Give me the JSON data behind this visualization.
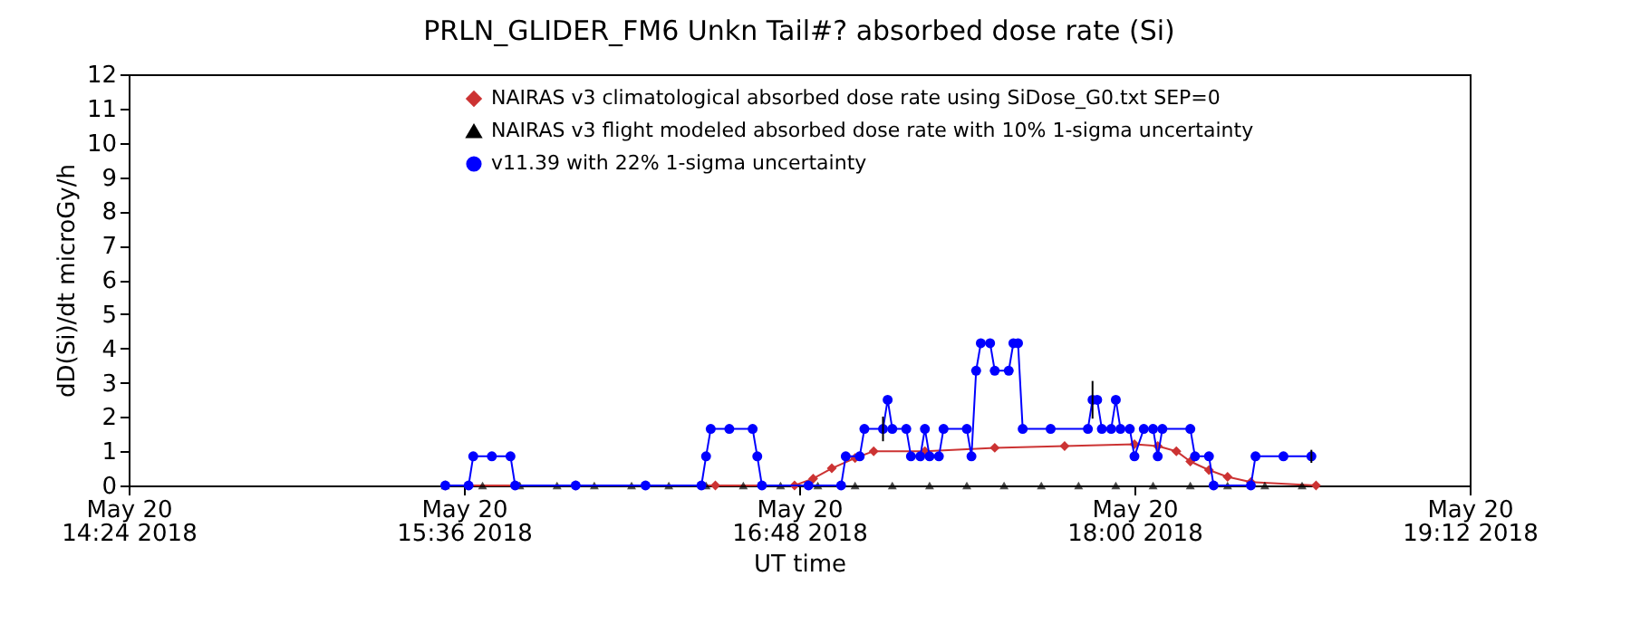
{
  "chart_data": {
    "type": "line",
    "title": "PRLN_GLIDER_FM6 Unkn Tail#? absorbed dose rate (Si)",
    "xlabel": "UT time",
    "ylabel": "dD(Si)/dt microGy/h",
    "xlim": [
      "2018-05-20T14:24",
      "2018-05-20T19:12"
    ],
    "xticks": [
      {
        "value": "2018-05-20T14:24",
        "label": "May 20\n14:24 2018"
      },
      {
        "value": "2018-05-20T15:36",
        "label": "May 20\n15:36 2018"
      },
      {
        "value": "2018-05-20T16:48",
        "label": "May 20\n16:48 2018"
      },
      {
        "value": "2018-05-20T18:00",
        "label": "May 20\n18:00 2018"
      },
      {
        "value": "2018-05-20T19:12",
        "label": "May 20\n19:12 2018"
      }
    ],
    "ylim": [
      0,
      12
    ],
    "yticks": [
      0,
      1,
      2,
      3,
      4,
      5,
      6,
      7,
      8,
      9,
      10,
      11,
      12
    ],
    "grid": false,
    "legend": "top",
    "series": [
      {
        "name": "NAIRAS v3 climatological absorbed dose rate using SiDose_G0.txt SEP=0",
        "color": "#cc3333",
        "type": "line",
        "marker": "diamond",
        "x": [
          "2018-05-20T15:32",
          "2018-05-20T16:00",
          "2018-05-20T16:30",
          "2018-05-20T16:47",
          "2018-05-20T16:51",
          "2018-05-20T16:55",
          "2018-05-20T17:00",
          "2018-05-20T17:04",
          "2018-05-20T17:15",
          "2018-05-20T17:30",
          "2018-05-20T17:45",
          "2018-05-20T18:00",
          "2018-05-20T18:05",
          "2018-05-20T18:09",
          "2018-05-20T18:12",
          "2018-05-20T18:16",
          "2018-05-20T18:20",
          "2018-05-20T18:25",
          "2018-05-20T18:39"
        ],
        "values": [
          0,
          0,
          0,
          0,
          0.2,
          0.5,
          0.8,
          1.0,
          1.0,
          1.1,
          1.15,
          1.2,
          1.15,
          1.0,
          0.7,
          0.45,
          0.25,
          0.1,
          0
        ]
      },
      {
        "name": "NAIRAS v3 flight modeled absorbed dose rate with 10% 1-sigma uncertainty",
        "color": "#000000",
        "type": "scatter",
        "marker": "triangle",
        "x": [
          "2018-05-20T15:32",
          "2018-05-20T15:40",
          "2018-05-20T15:48",
          "2018-05-20T15:56",
          "2018-05-20T16:04",
          "2018-05-20T16:12",
          "2018-05-20T16:20",
          "2018-05-20T16:28",
          "2018-05-20T16:36",
          "2018-05-20T16:44",
          "2018-05-20T16:52",
          "2018-05-20T17:00",
          "2018-05-20T17:08",
          "2018-05-20T17:16",
          "2018-05-20T17:24",
          "2018-05-20T17:32",
          "2018-05-20T17:40",
          "2018-05-20T17:48",
          "2018-05-20T17:56",
          "2018-05-20T18:04",
          "2018-05-20T18:12",
          "2018-05-20T18:20",
          "2018-05-20T18:28",
          "2018-05-20T18:36"
        ],
        "values": [
          0,
          0,
          0,
          0,
          0,
          0,
          0,
          0,
          0,
          0,
          0,
          0,
          0,
          0,
          0,
          0,
          0,
          0,
          0,
          0,
          0,
          0,
          0,
          0
        ]
      },
      {
        "name": "v11.39 with 22% 1-sigma uncertainty",
        "color": "#0000ff",
        "type": "line",
        "marker": "circle",
        "x": [
          "2018-05-20T15:32",
          "2018-05-20T15:37",
          "2018-05-20T15:38",
          "2018-05-20T15:42",
          "2018-05-20T15:46",
          "2018-05-20T15:47",
          "2018-05-20T16:00",
          "2018-05-20T16:15",
          "2018-05-20T16:27",
          "2018-05-20T16:28",
          "2018-05-20T16:29",
          "2018-05-20T16:33",
          "2018-05-20T16:38",
          "2018-05-20T16:39",
          "2018-05-20T16:40",
          "2018-05-20T16:50",
          "2018-05-20T16:57",
          "2018-05-20T16:58",
          "2018-05-20T17:01",
          "2018-05-20T17:02",
          "2018-05-20T17:06",
          "2018-05-20T17:07",
          "2018-05-20T17:08",
          "2018-05-20T17:11",
          "2018-05-20T17:12",
          "2018-05-20T17:14",
          "2018-05-20T17:15",
          "2018-05-20T17:16",
          "2018-05-20T17:18",
          "2018-05-20T17:19",
          "2018-05-20T17:24",
          "2018-05-20T17:25",
          "2018-05-20T17:26",
          "2018-05-20T17:27",
          "2018-05-20T17:29",
          "2018-05-20T17:30",
          "2018-05-20T17:33",
          "2018-05-20T17:34",
          "2018-05-20T17:35",
          "2018-05-20T17:36",
          "2018-05-20T17:42",
          "2018-05-20T17:50",
          "2018-05-20T17:51",
          "2018-05-20T17:52",
          "2018-05-20T17:53",
          "2018-05-20T17:55",
          "2018-05-20T17:56",
          "2018-05-20T17:57",
          "2018-05-20T17:59",
          "2018-05-20T18:00",
          "2018-05-20T18:02",
          "2018-05-20T18:04",
          "2018-05-20T18:05",
          "2018-05-20T18:06",
          "2018-05-20T18:12",
          "2018-05-20T18:13",
          "2018-05-20T18:16",
          "2018-05-20T18:17",
          "2018-05-20T18:25",
          "2018-05-20T18:26",
          "2018-05-20T18:32",
          "2018-05-20T18:38"
        ],
        "values": [
          0,
          0,
          0.85,
          0.85,
          0.85,
          0,
          0,
          0,
          0,
          0.85,
          1.65,
          1.65,
          1.65,
          0.85,
          0,
          0,
          0,
          0.85,
          0.85,
          1.65,
          1.65,
          2.5,
          1.65,
          1.65,
          0.85,
          0.85,
          1.65,
          0.85,
          0.85,
          1.65,
          1.65,
          0.85,
          3.35,
          4.15,
          4.15,
          3.35,
          3.35,
          4.15,
          4.15,
          1.65,
          1.65,
          1.65,
          2.5,
          2.5,
          1.65,
          1.65,
          2.5,
          1.65,
          1.65,
          0.85,
          1.65,
          1.65,
          0.85,
          1.65,
          1.65,
          0.85,
          0.85,
          0,
          0,
          0.85,
          0.85,
          0.85
        ],
        "errors": [
          null,
          null,
          null,
          null,
          null,
          null,
          null,
          null,
          null,
          null,
          null,
          null,
          null,
          null,
          null,
          null,
          null,
          null,
          null,
          null,
          0.36,
          null,
          null,
          null,
          null,
          null,
          null,
          null,
          null,
          null,
          null,
          null,
          null,
          null,
          null,
          null,
          null,
          null,
          null,
          null,
          null,
          null,
          0.55,
          null,
          null,
          null,
          null,
          null,
          null,
          null,
          null,
          null,
          null,
          null,
          null,
          null,
          null,
          null,
          null,
          null,
          null,
          0.19
        ]
      }
    ]
  }
}
